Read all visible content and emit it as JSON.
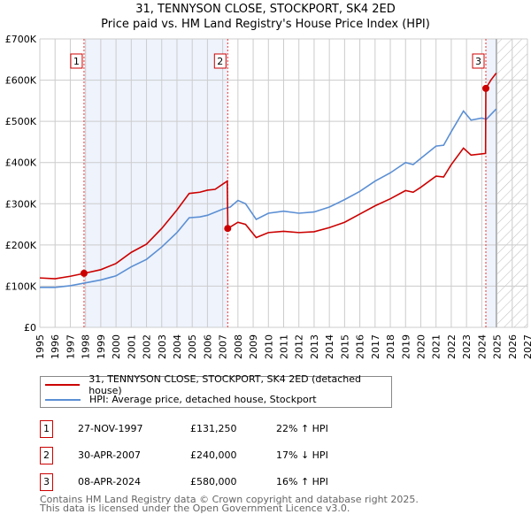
{
  "chart_data": {
    "type": "line",
    "title": "31, TENNYSON CLOSE, STOCKPORT, SK4 2ED",
    "subtitle": "Price paid vs. HM Land Registry's House Price Index (HPI)",
    "xlim": [
      1995,
      2027
    ],
    "ylim": [
      0,
      700000
    ],
    "x_ticks": [
      "1995",
      "1996",
      "1997",
      "1998",
      "1999",
      "2000",
      "2001",
      "2002",
      "2003",
      "2004",
      "2005",
      "2006",
      "2007",
      "2008",
      "2009",
      "2010",
      "2011",
      "2012",
      "2013",
      "2014",
      "2015",
      "2016",
      "2017",
      "2018",
      "2019",
      "2020",
      "2021",
      "2022",
      "2023",
      "2024",
      "2025",
      "2026",
      "2027"
    ],
    "y_ticks": [
      {
        "v": 0,
        "label": "£0"
      },
      {
        "v": 100000,
        "label": "£100K"
      },
      {
        "v": 200000,
        "label": "£200K"
      },
      {
        "v": 300000,
        "label": "£300K"
      },
      {
        "v": 400000,
        "label": "£400K"
      },
      {
        "v": 500000,
        "label": "£500K"
      },
      {
        "v": 600000,
        "label": "£600K"
      },
      {
        "v": 700000,
        "label": "£700K"
      }
    ],
    "grid": true,
    "shaded_ranges": [
      [
        1997.9,
        2007.33
      ],
      [
        2024.27,
        2024.95
      ]
    ],
    "forecast_from": 2024.95,
    "series": [
      {
        "name": "31, TENNYSON CLOSE, STOCKPORT, SK4 2ED (detached house)",
        "color": "#cc0000",
        "points": [
          [
            1995,
            120
          ],
          [
            1996,
            118
          ],
          [
            1997,
            124
          ],
          [
            1997.9,
            131
          ],
          [
            1999,
            140
          ],
          [
            2000,
            155
          ],
          [
            2001,
            182
          ],
          [
            2002,
            202
          ],
          [
            2003,
            240
          ],
          [
            2004,
            285
          ],
          [
            2004.8,
            325
          ],
          [
            2005.5,
            328
          ],
          [
            2006,
            333
          ],
          [
            2006.5,
            335
          ],
          [
            2007.3,
            355
          ],
          [
            2007.34,
            240
          ],
          [
            2008,
            255
          ],
          [
            2008.5,
            250
          ],
          [
            2009.2,
            218
          ],
          [
            2010,
            230
          ],
          [
            2011,
            233
          ],
          [
            2012,
            230
          ],
          [
            2013,
            232
          ],
          [
            2014,
            242
          ],
          [
            2015,
            255
          ],
          [
            2016,
            275
          ],
          [
            2017,
            295
          ],
          [
            2018,
            312
          ],
          [
            2019,
            332
          ],
          [
            2019.5,
            328
          ],
          [
            2020,
            340
          ],
          [
            2021,
            367
          ],
          [
            2021.5,
            365
          ],
          [
            2022,
            395
          ],
          [
            2022.8,
            435
          ],
          [
            2023.3,
            418
          ],
          [
            2024.25,
            422
          ],
          [
            2024.27,
            580
          ],
          [
            2024.6,
            600
          ],
          [
            2024.95,
            617
          ]
        ]
      },
      {
        "name": "HPI: Average price, detached house, Stockport",
        "color": "#5b8fd4",
        "points": [
          [
            1995,
            97
          ],
          [
            1996,
            97
          ],
          [
            1997,
            101
          ],
          [
            1998,
            108
          ],
          [
            1999,
            115
          ],
          [
            2000,
            125
          ],
          [
            2001,
            147
          ],
          [
            2002,
            165
          ],
          [
            2003,
            195
          ],
          [
            2004,
            230
          ],
          [
            2004.8,
            266
          ],
          [
            2005.5,
            268
          ],
          [
            2006,
            272
          ],
          [
            2007,
            287
          ],
          [
            2007.5,
            292
          ],
          [
            2008,
            308
          ],
          [
            2008.5,
            300
          ],
          [
            2009.2,
            262
          ],
          [
            2010,
            277
          ],
          [
            2011,
            282
          ],
          [
            2012,
            277
          ],
          [
            2013,
            280
          ],
          [
            2014,
            292
          ],
          [
            2015,
            310
          ],
          [
            2016,
            330
          ],
          [
            2017,
            355
          ],
          [
            2018,
            375
          ],
          [
            2019,
            400
          ],
          [
            2019.5,
            395
          ],
          [
            2020,
            410
          ],
          [
            2021,
            440
          ],
          [
            2021.5,
            442
          ],
          [
            2022,
            475
          ],
          [
            2022.8,
            525
          ],
          [
            2023.3,
            503
          ],
          [
            2024,
            508
          ],
          [
            2024.3,
            505
          ],
          [
            2024.95,
            530
          ]
        ]
      }
    ],
    "sales": [
      {
        "n": "1",
        "x": 1997.9,
        "y": 131.25
      },
      {
        "n": "2",
        "x": 2007.33,
        "y": 240
      },
      {
        "n": "3",
        "x": 2024.27,
        "y": 580
      }
    ]
  },
  "legend": {
    "red": "31, TENNYSON CLOSE, STOCKPORT, SK4 2ED (detached house)",
    "blue": "HPI: Average price, detached house, Stockport"
  },
  "table": [
    {
      "n": "1",
      "date": "27-NOV-1997",
      "price": "£131,250",
      "hpi": "22% ↑ HPI"
    },
    {
      "n": "2",
      "date": "30-APR-2007",
      "price": "£240,000",
      "hpi": "17% ↓ HPI"
    },
    {
      "n": "3",
      "date": "08-APR-2024",
      "price": "£580,000",
      "hpi": "16% ↑ HPI"
    }
  ],
  "footer": [
    "Contains HM Land Registry data © Crown copyright and database right 2025.",
    "This data is licensed under the Open Government Licence v3.0."
  ]
}
